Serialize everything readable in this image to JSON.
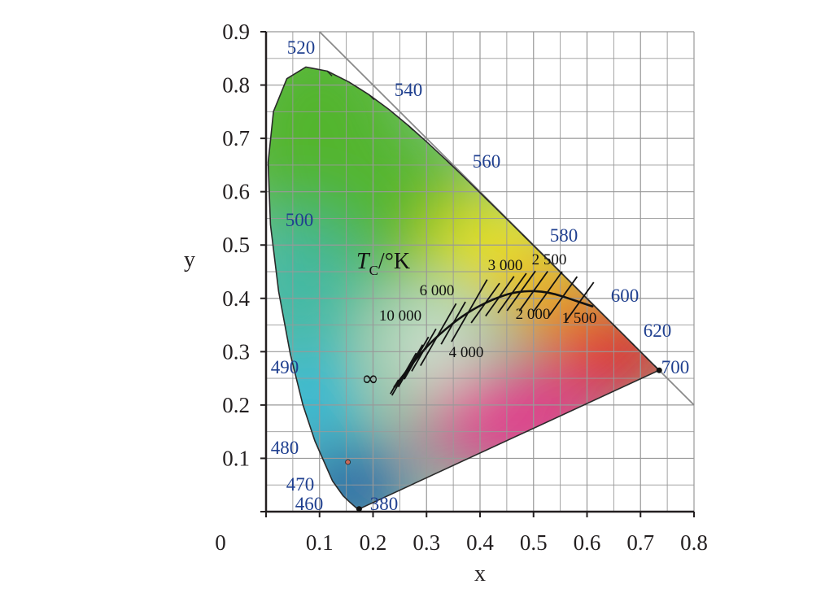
{
  "chart_data": {
    "type": "scatter",
    "xlabel": "x",
    "ylabel": "y",
    "xlim": [
      0,
      0.8
    ],
    "ylim": [
      0,
      0.9
    ],
    "grid": true,
    "origin_label": "0",
    "x_ticks": [
      "0.1",
      "0.2",
      "0.3",
      "0.4",
      "0.5",
      "0.6",
      "0.7",
      "0.8"
    ],
    "y_ticks": [
      "0.1",
      "0.2",
      "0.3",
      "0.4",
      "0.5",
      "0.6",
      "0.7",
      "0.8",
      "0.9"
    ],
    "spectral_locus_wavelengths": [
      {
        "label": "380",
        "x": 0.175,
        "y": 0.005
      },
      {
        "label": "460",
        "x": 0.144,
        "y": 0.03
      },
      {
        "label": "470",
        "x": 0.124,
        "y": 0.058
      },
      {
        "label": "480",
        "x": 0.091,
        "y": 0.133
      },
      {
        "label": "490",
        "x": 0.045,
        "y": 0.295
      },
      {
        "label": "500",
        "x": 0.008,
        "y": 0.538
      },
      {
        "label": "520",
        "x": 0.074,
        "y": 0.834
      },
      {
        "label": "540",
        "x": 0.23,
        "y": 0.754
      },
      {
        "label": "560",
        "x": 0.373,
        "y": 0.624
      },
      {
        "label": "580",
        "x": 0.512,
        "y": 0.487
      },
      {
        "label": "600",
        "x": 0.627,
        "y": 0.372
      },
      {
        "label": "620",
        "x": 0.691,
        "y": 0.308
      },
      {
        "label": "700",
        "x": 0.735,
        "y": 0.265
      }
    ],
    "planckian_locus": {
      "title_T": "T",
      "title_sub": "C",
      "title_rest": "/°K",
      "points": [
        {
          "label": "1 500",
          "T": 1500,
          "x": 0.586,
          "y": 0.393
        },
        {
          "label": "2 000",
          "T": 2000,
          "x": 0.527,
          "y": 0.413
        },
        {
          "label": "2 500",
          "T": 2500,
          "x": 0.477,
          "y": 0.414
        },
        {
          "label": "3 000",
          "T": 3000,
          "x": 0.437,
          "y": 0.404
        },
        {
          "label": "4 000",
          "T": 4000,
          "x": 0.38,
          "y": 0.377
        },
        {
          "label": "6 000",
          "T": 6000,
          "x": 0.322,
          "y": 0.332
        },
        {
          "label": "10 000",
          "T": 10000,
          "x": 0.281,
          "y": 0.288
        },
        {
          "label": "∞",
          "T": null,
          "x": 0.24,
          "y": 0.234
        }
      ]
    },
    "marked_point": {
      "x": 0.153,
      "y": 0.093
    },
    "colors": {
      "green": "#52b52e",
      "yellow": "#f2e61c",
      "orange": "#f39a1e",
      "red": "#e21b23",
      "magenta": "#e8318a",
      "blue": "#1f5ba8",
      "cyan": "#1fb6e8",
      "teal": "#3db8a5",
      "grid": "#999999",
      "wavelength_text": "#1f3f8f"
    }
  }
}
